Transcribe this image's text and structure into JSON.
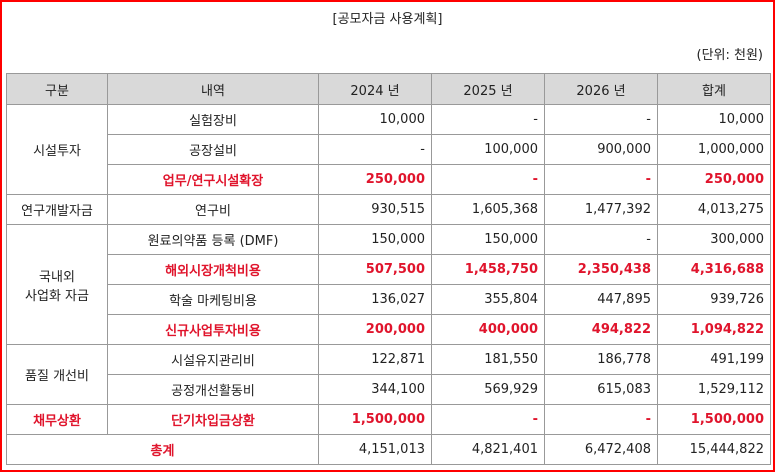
{
  "header": {
    "title": "[공모자금 사용계획]",
    "unit": "(단위: 천원)"
  },
  "table": {
    "columns": [
      "구분",
      "내역",
      "2024 년",
      "2025 년",
      "2026 년",
      "합계"
    ],
    "groups": [
      {
        "label": "시설투자",
        "highlight": false,
        "rows": [
          {
            "item": "실험장비",
            "highlight": false,
            "cells": [
              "10,000",
              "-",
              "-",
              "10,000"
            ]
          },
          {
            "item": "공장설비",
            "highlight": false,
            "cells": [
              "-",
              "100,000",
              "900,000",
              "1,000,000"
            ]
          },
          {
            "item": "업무/연구시설확장",
            "highlight": true,
            "cells": [
              "250,000",
              "-",
              "-",
              "250,000"
            ]
          }
        ]
      },
      {
        "label": "연구개발자금",
        "highlight": false,
        "rows": [
          {
            "item": "연구비",
            "highlight": false,
            "cells": [
              "930,515",
              "1,605,368",
              "1,477,392",
              "4,013,275"
            ]
          }
        ]
      },
      {
        "label": "국내외\n사업화 자금",
        "highlight": false,
        "rows": [
          {
            "item": "원료의약품 등록 (DMF)",
            "highlight": false,
            "cells": [
              "150,000",
              "150,000",
              "-",
              "300,000"
            ]
          },
          {
            "item": "해외시장개척비용",
            "highlight": true,
            "cells": [
              "507,500",
              "1,458,750",
              "2,350,438",
              "4,316,688"
            ]
          },
          {
            "item": "학술 마케팅비용",
            "highlight": false,
            "cells": [
              "136,027",
              "355,804",
              "447,895",
              "939,726"
            ]
          },
          {
            "item": "신규사업투자비용",
            "highlight": true,
            "cells": [
              "200,000",
              "400,000",
              "494,822",
              "1,094,822"
            ]
          }
        ]
      },
      {
        "label": "품질 개선비",
        "highlight": false,
        "rows": [
          {
            "item": "시설유지관리비",
            "highlight": false,
            "cells": [
              "122,871",
              "181,550",
              "186,778",
              "491,199"
            ]
          },
          {
            "item": "공정개선활동비",
            "highlight": false,
            "cells": [
              "344,100",
              "569,929",
              "615,083",
              "1,529,112"
            ]
          }
        ]
      },
      {
        "label": "채무상환",
        "highlight": true,
        "rows": [
          {
            "item": "단기차입금상환",
            "highlight": true,
            "cells": [
              "1,500,000",
              "-",
              "-",
              "1,500,000"
            ]
          }
        ]
      }
    ],
    "total": {
      "label": "총계",
      "cells": [
        "4,151,013",
        "4,821,401",
        "6,472,408",
        "15,444,822"
      ]
    }
  }
}
